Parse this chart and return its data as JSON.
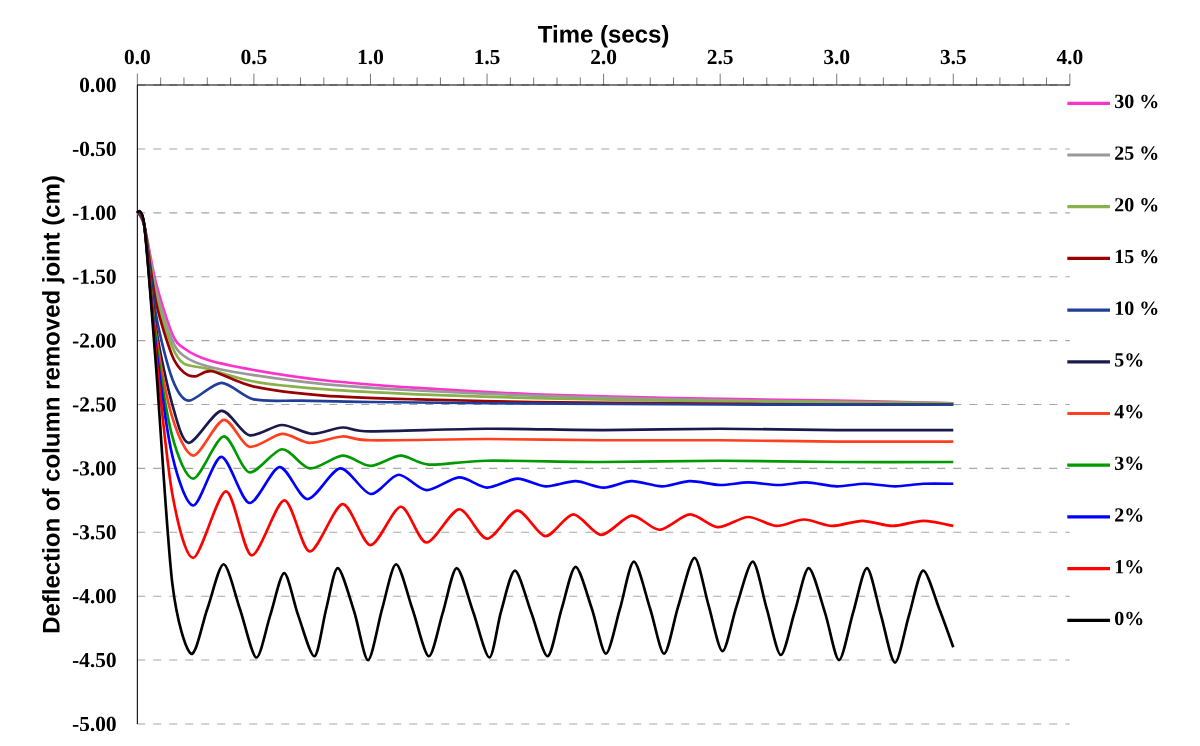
{
  "chart_data": {
    "type": "line",
    "xlabel": "Time (secs)",
    "ylabel": "Deflection of column removed joint (cm)",
    "xlim": [
      0,
      4
    ],
    "ylim": [
      -5,
      0
    ],
    "xticks": [
      {
        "value": 0,
        "label": "0.0"
      },
      0.5,
      {
        "value": 1,
        "label": "1.0"
      },
      1.5,
      {
        "value": 2,
        "label": "2.0"
      },
      2.5,
      {
        "value": 3,
        "label": "3.0"
      },
      3.5,
      {
        "value": 4,
        "label": "4.0"
      }
    ],
    "yticks": [
      {
        "value": 0,
        "label": "0.00"
      },
      {
        "value": -0.5,
        "label": "-0.50"
      },
      {
        "value": -1,
        "label": "-1.00"
      },
      {
        "value": -1.5,
        "label": "-1.50"
      },
      {
        "value": -2,
        "label": "-2.00"
      },
      {
        "value": -2.5,
        "label": "-2.50"
      },
      {
        "value": -3,
        "label": "-3.00"
      },
      {
        "value": -3.5,
        "label": "-3.50"
      },
      {
        "value": -4,
        "label": "-4.00"
      },
      {
        "value": -4.5,
        "label": "-4.50"
      },
      {
        "value": -5,
        "label": "-5.00"
      }
    ],
    "grid": "y",
    "legend": "right",
    "marker": "none",
    "line_style": "solid",
    "series": [
      {
        "name": "30 %",
        "color": "#ff33cc",
        "x": [
          0,
          0.03,
          0.08,
          0.15,
          0.2,
          0.3,
          0.5,
          0.8,
          1.2,
          1.7,
          2.3,
          3.0,
          3.5
        ],
        "values": [
          -1.0,
          -1.1,
          -1.55,
          -1.95,
          -2.06,
          -2.15,
          -2.23,
          -2.31,
          -2.37,
          -2.42,
          -2.45,
          -2.47,
          -2.49
        ]
      },
      {
        "name": "25 %",
        "color": "#999999",
        "x": [
          0,
          0.03,
          0.08,
          0.15,
          0.2,
          0.3,
          0.5,
          0.8,
          1.2,
          1.7,
          2.3,
          3.0,
          3.5
        ],
        "values": [
          -1.0,
          -1.1,
          -1.6,
          -2.0,
          -2.12,
          -2.2,
          -2.27,
          -2.34,
          -2.39,
          -2.43,
          -2.46,
          -2.48,
          -2.49
        ]
      },
      {
        "name": "20 %",
        "color": "#88b04b",
        "x": [
          0,
          0.03,
          0.08,
          0.15,
          0.2,
          0.3,
          0.5,
          0.8,
          1.2,
          1.7,
          2.3,
          3.0,
          3.5
        ],
        "values": [
          -1.0,
          -1.1,
          -1.65,
          -2.05,
          -2.18,
          -2.22,
          -2.32,
          -2.38,
          -2.42,
          -2.45,
          -2.47,
          -2.48,
          -2.49
        ]
      },
      {
        "name": "15 %",
        "color": "#990000",
        "x": [
          0,
          0.03,
          0.08,
          0.15,
          0.2,
          0.25,
          0.32,
          0.5,
          0.8,
          1.2,
          1.7,
          2.3,
          3.0,
          3.5
        ],
        "values": [
          -1.0,
          -1.1,
          -1.7,
          -2.12,
          -2.25,
          -2.28,
          -2.24,
          -2.36,
          -2.43,
          -2.46,
          -2.48,
          -2.49,
          -2.5,
          -2.5
        ]
      },
      {
        "name": "10 %",
        "color": "#1f3f99",
        "x": [
          0,
          0.03,
          0.08,
          0.15,
          0.22,
          0.36,
          0.5,
          0.7,
          1.0,
          1.5,
          2.5,
          3.5
        ],
        "values": [
          -1.0,
          -1.1,
          -1.8,
          -2.3,
          -2.47,
          -2.33,
          -2.46,
          -2.47,
          -2.48,
          -2.49,
          -2.5,
          -2.5
        ]
      },
      {
        "name": "5%",
        "color": "#1a1a4d",
        "x": [
          0,
          0.03,
          0.08,
          0.15,
          0.22,
          0.36,
          0.48,
          0.62,
          0.75,
          0.88,
          1.0,
          1.5,
          2.0,
          2.5,
          3.0,
          3.5
        ],
        "values": [
          -1.0,
          -1.1,
          -1.9,
          -2.5,
          -2.8,
          -2.55,
          -2.74,
          -2.66,
          -2.73,
          -2.68,
          -2.71,
          -2.69,
          -2.7,
          -2.69,
          -2.7,
          -2.7
        ]
      },
      {
        "name": "4%",
        "color": "#ff4020",
        "x": [
          0,
          0.03,
          0.08,
          0.15,
          0.24,
          0.37,
          0.48,
          0.62,
          0.74,
          0.88,
          1.0,
          1.5,
          2.0,
          2.5,
          3.0,
          3.5
        ],
        "values": [
          -1.0,
          -1.1,
          -1.95,
          -2.6,
          -2.9,
          -2.62,
          -2.83,
          -2.73,
          -2.8,
          -2.75,
          -2.78,
          -2.77,
          -2.78,
          -2.78,
          -2.79,
          -2.79
        ]
      },
      {
        "name": "3%",
        "color": "#009900",
        "x": [
          0,
          0.03,
          0.08,
          0.15,
          0.24,
          0.37,
          0.48,
          0.62,
          0.74,
          0.88,
          1.0,
          1.13,
          1.25,
          1.5,
          2.0,
          2.5,
          3.0,
          3.5
        ],
        "values": [
          -1.0,
          -1.1,
          -2.0,
          -2.75,
          -3.08,
          -2.75,
          -3.03,
          -2.85,
          -3.0,
          -2.9,
          -2.98,
          -2.9,
          -2.97,
          -2.94,
          -2.95,
          -2.94,
          -2.95,
          -2.95
        ]
      },
      {
        "name": "2%",
        "color": "#0000ff",
        "x": [
          0,
          0.03,
          0.08,
          0.15,
          0.24,
          0.36,
          0.48,
          0.61,
          0.73,
          0.87,
          1.0,
          1.12,
          1.24,
          1.38,
          1.5,
          1.63,
          1.75,
          1.88,
          2.0,
          2.12,
          2.25,
          2.37,
          2.5,
          2.62,
          2.75,
          2.87,
          3.0,
          3.12,
          3.25,
          3.37,
          3.5
        ],
        "values": [
          -1.0,
          -1.1,
          -2.05,
          -2.9,
          -3.29,
          -2.91,
          -3.27,
          -2.99,
          -3.24,
          -3.0,
          -3.2,
          -3.05,
          -3.17,
          -3.07,
          -3.15,
          -3.08,
          -3.14,
          -3.1,
          -3.15,
          -3.1,
          -3.14,
          -3.1,
          -3.13,
          -3.11,
          -3.13,
          -3.11,
          -3.14,
          -3.12,
          -3.14,
          -3.12,
          -3.12
        ]
      },
      {
        "name": "1%",
        "color": "#ff0000",
        "x": [
          0,
          0.03,
          0.08,
          0.15,
          0.24,
          0.38,
          0.49,
          0.63,
          0.74,
          0.88,
          1.0,
          1.13,
          1.24,
          1.38,
          1.5,
          1.63,
          1.75,
          1.87,
          1.99,
          2.12,
          2.24,
          2.37,
          2.49,
          2.62,
          2.74,
          2.86,
          2.98,
          3.11,
          3.24,
          3.37,
          3.5
        ],
        "values": [
          -1.0,
          -1.1,
          -2.1,
          -3.2,
          -3.7,
          -3.18,
          -3.68,
          -3.25,
          -3.65,
          -3.28,
          -3.6,
          -3.3,
          -3.58,
          -3.32,
          -3.55,
          -3.33,
          -3.53,
          -3.36,
          -3.52,
          -3.37,
          -3.48,
          -3.36,
          -3.46,
          -3.38,
          -3.45,
          -3.4,
          -3.45,
          -3.41,
          -3.45,
          -3.41,
          -3.45
        ]
      },
      {
        "name": "0%",
        "color": "#000000",
        "x": [
          0,
          0.03,
          0.08,
          0.15,
          0.23,
          0.3,
          0.37,
          0.44,
          0.51,
          0.57,
          0.63,
          0.69,
          0.76,
          0.81,
          0.86,
          0.93,
          0.99,
          1.05,
          1.11,
          1.18,
          1.25,
          1.31,
          1.37,
          1.44,
          1.51,
          1.56,
          1.62,
          1.69,
          1.76,
          1.82,
          1.88,
          1.95,
          2.01,
          2.07,
          2.13,
          2.2,
          2.26,
          2.32,
          2.39,
          2.45,
          2.51,
          2.57,
          2.64,
          2.7,
          2.76,
          2.82,
          2.88,
          2.95,
          3.01,
          3.07,
          3.13,
          3.19,
          3.25,
          3.31,
          3.37,
          3.44,
          3.5
        ],
        "values": [
          -1.0,
          -1.1,
          -2.2,
          -3.9,
          -4.45,
          -4.1,
          -3.75,
          -4.1,
          -4.48,
          -4.15,
          -3.82,
          -4.15,
          -4.47,
          -4.1,
          -3.78,
          -4.12,
          -4.5,
          -4.1,
          -3.75,
          -4.1,
          -4.47,
          -4.13,
          -3.78,
          -4.12,
          -4.48,
          -4.12,
          -3.8,
          -4.13,
          -4.47,
          -4.1,
          -3.77,
          -4.1,
          -4.45,
          -4.1,
          -3.73,
          -4.1,
          -4.45,
          -4.08,
          -3.7,
          -4.07,
          -4.43,
          -4.08,
          -3.73,
          -4.1,
          -4.46,
          -4.12,
          -3.78,
          -4.13,
          -4.5,
          -4.13,
          -3.78,
          -4.15,
          -4.52,
          -4.15,
          -3.8,
          -4.1,
          -4.4
        ]
      }
    ]
  }
}
